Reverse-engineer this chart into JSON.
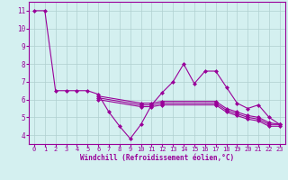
{
  "background_color": "#d4f0f0",
  "grid_color": "#b0d0d0",
  "line_color": "#990099",
  "marker": "D",
  "markersize": 2,
  "linewidth": 0.8,
  "xlabel": "Windchill (Refroidissement éolien,°C)",
  "xlim": [
    -0.5,
    23.5
  ],
  "ylim": [
    3.5,
    11.5
  ],
  "xticks": [
    0,
    1,
    2,
    3,
    4,
    5,
    6,
    7,
    8,
    9,
    10,
    11,
    12,
    13,
    14,
    15,
    16,
    17,
    18,
    19,
    20,
    21,
    22,
    23
  ],
  "yticks": [
    4,
    5,
    6,
    7,
    8,
    9,
    10,
    11
  ],
  "series": [
    [
      11,
      11,
      6.5,
      6.5,
      6.5,
      6.5,
      6.3,
      5.3,
      4.5,
      3.8,
      4.6,
      5.7,
      6.4,
      7.0,
      8.0,
      6.9,
      7.6,
      7.6,
      6.7,
      5.8,
      5.5,
      5.7,
      5.0,
      4.6
    ],
    [
      null,
      null,
      null,
      null,
      null,
      null,
      6.2,
      null,
      null,
      null,
      5.8,
      5.8,
      5.9,
      null,
      null,
      null,
      null,
      5.9,
      5.5,
      5.3,
      5.1,
      5.0,
      4.7,
      4.6
    ],
    [
      null,
      null,
      null,
      null,
      null,
      null,
      6.1,
      null,
      null,
      null,
      5.7,
      5.7,
      5.8,
      null,
      null,
      null,
      null,
      5.8,
      5.4,
      5.2,
      5.0,
      4.9,
      4.6,
      4.6
    ],
    [
      null,
      null,
      null,
      null,
      null,
      null,
      6.0,
      null,
      null,
      null,
      5.6,
      5.6,
      5.7,
      null,
      null,
      null,
      null,
      5.7,
      5.3,
      5.1,
      4.9,
      4.8,
      4.5,
      4.5
    ]
  ]
}
